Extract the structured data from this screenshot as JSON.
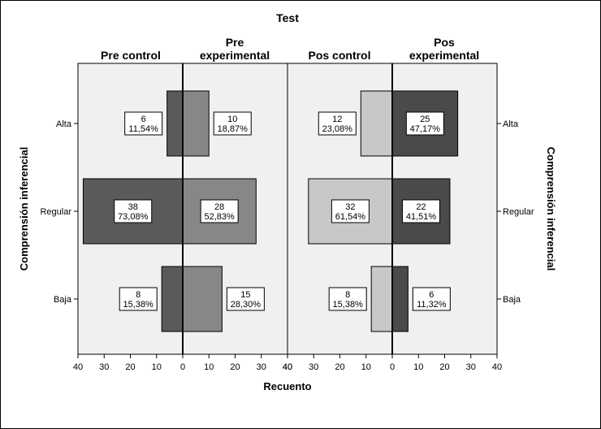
{
  "chart_data": {
    "type": "bar",
    "title": "Test",
    "xlabel": "Recuento",
    "ylabel": "Comprensión inferencial",
    "categories": [
      "Alta",
      "Regular",
      "Baja"
    ],
    "xlim": [
      0,
      40
    ],
    "xticks": [
      "40",
      "30",
      "20",
      "10",
      "0",
      "10",
      "20",
      "30",
      "40"
    ],
    "groups": [
      {
        "name": "Pre control",
        "label_lines": [
          "Pre control"
        ],
        "side": "left",
        "color": "#5a5a5a",
        "values": [
          6,
          38,
          8
        ],
        "labels": [
          [
            "6",
            "11,54%"
          ],
          [
            "38",
            "73,08%"
          ],
          [
            "8",
            "15,38%"
          ]
        ]
      },
      {
        "name": "Pre experimental",
        "label_lines": [
          "Pre",
          "experimental"
        ],
        "side": "right",
        "color": "#878787",
        "values": [
          10,
          28,
          15
        ],
        "labels": [
          [
            "10",
            "18,87%"
          ],
          [
            "28",
            "52,83%"
          ],
          [
            "15",
            "28,30%"
          ]
        ]
      },
      {
        "name": "Pos control",
        "label_lines": [
          "Pos control"
        ],
        "side": "left",
        "color": "#c8c8c8",
        "values": [
          12,
          32,
          8
        ],
        "labels": [
          [
            "12",
            "23,08%"
          ],
          [
            "32",
            "61,54%"
          ],
          [
            "8",
            "15,38%"
          ]
        ]
      },
      {
        "name": "Pos experimental",
        "label_lines": [
          "Pos",
          "experimental"
        ],
        "side": "right",
        "color": "#4a4a4a",
        "values": [
          25,
          22,
          6
        ],
        "labels": [
          [
            "25",
            "47,17%"
          ],
          [
            "22",
            "41,51%"
          ],
          [
            "6",
            "11,32%"
          ]
        ]
      }
    ],
    "grid": false
  }
}
